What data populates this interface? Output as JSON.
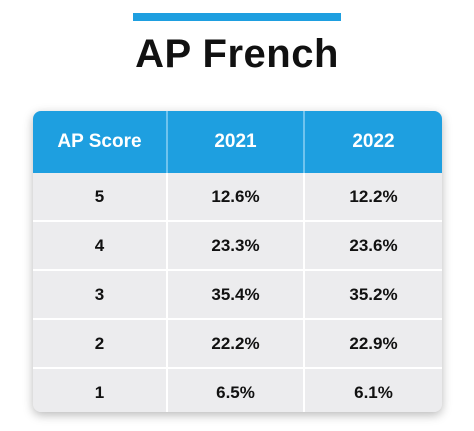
{
  "title": "AP French",
  "colors": {
    "accent": "#1e9fe0",
    "row_background": "#ececee",
    "text": "#111111"
  },
  "chart_data": {
    "type": "table",
    "title": "AP French",
    "columns": [
      "AP Score",
      "2021",
      "2022"
    ],
    "rows": [
      {
        "score": "5",
        "y2021": "12.6%",
        "y2022": "12.2%"
      },
      {
        "score": "4",
        "y2021": "23.3%",
        "y2022": "23.6%"
      },
      {
        "score": "3",
        "y2021": "35.4%",
        "y2022": "35.2%"
      },
      {
        "score": "2",
        "y2021": "22.2%",
        "y2022": "22.9%"
      },
      {
        "score": "1",
        "y2021": "6.5%",
        "y2022": "6.1%"
      }
    ]
  }
}
